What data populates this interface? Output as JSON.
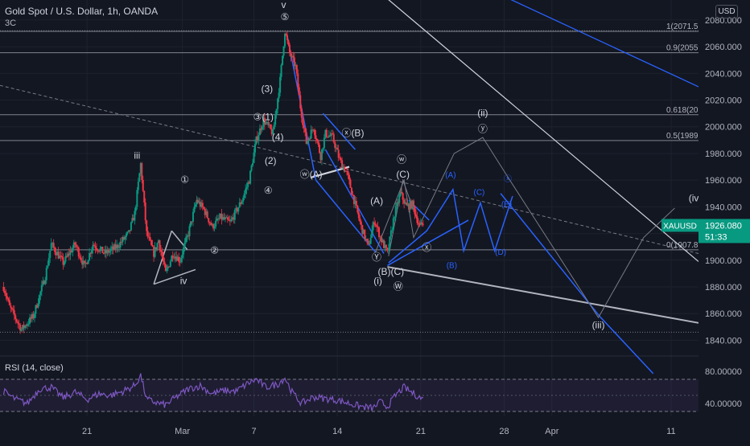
{
  "header": {
    "symbol_title": "Gold Spot / U.S. Dollar, 1h, OANDA",
    "subtitle": "3C",
    "currency_badge": "USD"
  },
  "price_badge": {
    "symbol": "XAUUSD",
    "price": "1926.080",
    "countdown": "51:33",
    "color": "#089981"
  },
  "chart_data": [
    {
      "type": "candlestick",
      "title": "Gold Spot / U.S. Dollar, 1h, OANDA",
      "ylim": [
        1830,
        2095
      ],
      "yticks": [
        "2080.000",
        "2060.000",
        "2040.000",
        "2020.000",
        "2000.000",
        "1980.000",
        "1960.000",
        "1940.000",
        "1920.000",
        "1900.000",
        "1880.000",
        "1860.000",
        "1840.000"
      ],
      "xticks": [
        {
          "label": "21",
          "day": 21
        },
        {
          "label": "Mar",
          "day": 29
        },
        {
          "label": "7",
          "day": 35
        },
        {
          "label": "14",
          "day": 42
        },
        {
          "label": "21",
          "day": 49
        },
        {
          "label": "28",
          "day": 56
        },
        {
          "label": "Apr",
          "day": 60
        },
        {
          "label": "11",
          "day": 70
        }
      ],
      "xlim": [
        13.7,
        72.3
      ],
      "candle_color_up": "#089981",
      "candle_color_down": "#f23645",
      "price_anchors": [
        [
          14.0,
          1880
        ],
        [
          14.5,
          1865
        ],
        [
          15.5,
          1848
        ],
        [
          16.5,
          1858
        ],
        [
          17.5,
          1888
        ],
        [
          18.0,
          1912
        ],
        [
          19.0,
          1898
        ],
        [
          20.0,
          1912
        ],
        [
          20.8,
          1895
        ],
        [
          21.5,
          1912
        ],
        [
          22.5,
          1905
        ],
        [
          23.5,
          1910
        ],
        [
          24.5,
          1920
        ],
        [
          25.0,
          1935
        ],
        [
          25.5,
          1972
        ],
        [
          26.0,
          1920
        ],
        [
          26.6,
          1905
        ],
        [
          27.0,
          1915
        ],
        [
          27.6,
          1890
        ],
        [
          28.2,
          1905
        ],
        [
          28.8,
          1900
        ],
        [
          29.5,
          1920
        ],
        [
          30.2,
          1945
        ],
        [
          30.8,
          1938
        ],
        [
          31.5,
          1925
        ],
        [
          32.2,
          1932
        ],
        [
          33.0,
          1928
        ],
        [
          34.0,
          1945
        ],
        [
          34.6,
          1960
        ],
        [
          35.2,
          1990
        ],
        [
          35.8,
          2005
        ],
        [
          36.6,
          1995
        ],
        [
          37.2,
          2035
        ],
        [
          37.6,
          2072
        ],
        [
          38.0,
          2055
        ],
        [
          38.5,
          2045
        ],
        [
          38.9,
          2015
        ],
        [
          39.4,
          1988
        ],
        [
          40.0,
          2000
        ],
        [
          40.6,
          1978
        ],
        [
          41.0,
          1995
        ],
        [
          41.6,
          1992
        ],
        [
          42.2,
          1975
        ],
        [
          42.8,
          1965
        ],
        [
          43.4,
          1945
        ],
        [
          44.0,
          1925
        ],
        [
          44.6,
          1910
        ],
        [
          45.1,
          1930
        ],
        [
          45.7,
          1915
        ],
        [
          46.2,
          1905
        ],
        [
          46.8,
          1935
        ],
        [
          47.3,
          1950
        ],
        [
          47.8,
          1940
        ],
        [
          48.3,
          1942
        ],
        [
          48.9,
          1925
        ],
        [
          49.2,
          1928
        ]
      ],
      "horizontal_levels": [
        {
          "label": "1(2071.5",
          "value": 2071.5
        },
        {
          "label": "0.9(2055",
          "value": 2055.5
        },
        {
          "label": "0.618(20",
          "value": 2009.0
        },
        {
          "label": "0.5(1989",
          "value": 1989.7
        },
        {
          "label": "0(1907.8",
          "value": 1907.8
        }
      ],
      "elliott_labels_gray": [
        {
          "text": "v",
          "day": 37.5,
          "price": 2089
        },
        {
          "text": "⑤",
          "day": 37.6,
          "price": 2080
        },
        {
          "text": "iii",
          "day": 25.2,
          "price": 1976
        },
        {
          "text": "iv",
          "day": 29.1,
          "price": 1882
        },
        {
          "text": "①",
          "day": 29.2,
          "price": 1958
        },
        {
          "text": "②",
          "day": 31.7,
          "price": 1905
        },
        {
          "text": "(3)",
          "day": 36.1,
          "price": 2026
        },
        {
          "text": "③(1)",
          "day": 35.8,
          "price": 2005
        },
        {
          "text": "(2)",
          "day": 36.4,
          "price": 1972
        },
        {
          "text": "(4)",
          "day": 37.0,
          "price": 1990
        },
        {
          "text": "④",
          "day": 36.2,
          "price": 1950
        },
        {
          "text": "ⓦ(A)",
          "day": 39.8,
          "price": 1962
        },
        {
          "text": "ⓧ(B)",
          "day": 43.3,
          "price": 1993
        },
        {
          "text": "(A)",
          "day": 45.3,
          "price": 1942
        },
        {
          "text": "Ⓨ",
          "day": 45.3,
          "price": 1900
        },
        {
          "text": "(i)",
          "day": 45.4,
          "price": 1882
        },
        {
          "text": "(B)(C)",
          "day": 46.5,
          "price": 1889
        },
        {
          "text": "Ⓦ",
          "day": 47.1,
          "price": 1878
        },
        {
          "text": "ⓦ",
          "day": 47.4,
          "price": 1973
        },
        {
          "text": "(C)",
          "day": 47.5,
          "price": 1962
        },
        {
          "text": "ⓧ",
          "day": 49.5,
          "price": 1907
        },
        {
          "text": "(ii)",
          "day": 54.2,
          "price": 2008
        },
        {
          "text": "ⓨ",
          "day": 54.2,
          "price": 1996
        },
        {
          "text": "(iii)",
          "day": 63.9,
          "price": 1849
        },
        {
          "text": "(iv",
          "day": 71.9,
          "price": 1944
        }
      ],
      "wave_labels_blue": [
        {
          "text": "(A)",
          "day": 51.5,
          "price": 1962
        },
        {
          "text": "(B)",
          "day": 51.6,
          "price": 1894
        },
        {
          "text": "(C)",
          "day": 53.9,
          "price": 1949
        },
        {
          "text": "(D)",
          "day": 55.7,
          "price": 1904
        },
        {
          "text": "ⓧ",
          "day": 56.3,
          "price": 1959
        },
        {
          "text": "(E)",
          "day": 56.2,
          "price": 1940
        }
      ]
    },
    {
      "type": "line",
      "title": "RSI (14, close)",
      "ylim": [
        24,
        96
      ],
      "yticks": [
        "80.00000",
        "40.00000"
      ],
      "band_upper": 70,
      "band_lower": 30,
      "line_color": "#7e57c2",
      "rsi_anchors": [
        [
          14.0,
          55
        ],
        [
          15.0,
          45
        ],
        [
          16.0,
          40
        ],
        [
          17.0,
          58
        ],
        [
          18.0,
          60
        ],
        [
          19.0,
          47
        ],
        [
          20.0,
          54
        ],
        [
          21.0,
          45
        ],
        [
          22.0,
          52
        ],
        [
          23.0,
          50
        ],
        [
          24.0,
          55
        ],
        [
          25.0,
          62
        ],
        [
          25.5,
          75
        ],
        [
          26.0,
          45
        ],
        [
          27.0,
          40
        ],
        [
          27.6,
          38
        ],
        [
          28.5,
          48
        ],
        [
          29.5,
          58
        ],
        [
          30.5,
          62
        ],
        [
          31.5,
          52
        ],
        [
          32.5,
          56
        ],
        [
          33.5,
          55
        ],
        [
          34.5,
          65
        ],
        [
          35.2,
          70
        ],
        [
          36.0,
          60
        ],
        [
          37.0,
          64
        ],
        [
          37.6,
          72
        ],
        [
          38.2,
          54
        ],
        [
          39.0,
          40
        ],
        [
          40.0,
          48
        ],
        [
          41.0,
          46
        ],
        [
          42.0,
          44
        ],
        [
          43.0,
          40
        ],
        [
          44.0,
          36
        ],
        [
          45.0,
          34
        ],
        [
          45.6,
          42
        ],
        [
          46.2,
          36
        ],
        [
          47.0,
          52
        ],
        [
          47.6,
          60
        ],
        [
          48.2,
          54
        ],
        [
          49.2,
          45
        ]
      ]
    }
  ]
}
